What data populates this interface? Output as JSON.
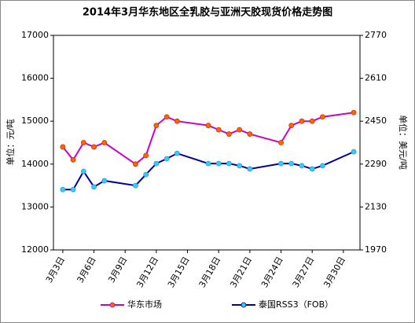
{
  "chart_data": {
    "type": "line",
    "title": "2014年3月华东地区全乳胶与亚洲天胶现货价格走势图",
    "y_label": "单位：元/吨",
    "y2_label": "单位：美元/吨",
    "x": [
      3,
      4,
      5,
      6,
      7,
      10,
      11,
      12,
      13,
      14,
      17,
      18,
      19,
      20,
      21,
      24,
      25,
      26,
      27,
      28,
      31
    ],
    "xlim": [
      2.1,
      31.6
    ],
    "xticks": [
      {
        "value": 3,
        "label": "3月3日"
      },
      {
        "value": 6,
        "label": "3月6日"
      },
      {
        "value": 9,
        "label": "3月9日"
      },
      {
        "value": 12,
        "label": "3月12日"
      },
      {
        "value": 15,
        "label": "3月15日"
      },
      {
        "value": 18,
        "label": "3月18日"
      },
      {
        "value": 21,
        "label": "3月21日"
      },
      {
        "value": 24,
        "label": "3月24日"
      },
      {
        "value": 27,
        "label": "3月27日"
      },
      {
        "value": 30,
        "label": "3月30日"
      }
    ],
    "ylim": [
      12000,
      17000
    ],
    "yticks": [
      12000,
      13000,
      14000,
      15000,
      16000,
      17000
    ],
    "y2lim": [
      1970,
      2770
    ],
    "y2ticks": [
      1970,
      2130,
      2290,
      2450,
      2610,
      2770
    ],
    "legend": "bottom",
    "series": [
      {
        "name": "华东市场",
        "color": "#cc00cc",
        "marker_color": "#ff6600",
        "values": [
          14400,
          14100,
          14500,
          14400,
          14500,
          14000,
          14200,
          14900,
          15100,
          15000,
          14900,
          14800,
          14700,
          14800,
          14700,
          14500,
          14900,
          15000,
          15000,
          15100,
          15200
        ]
      },
      {
        "name": "泰国RSS3（FOB）",
        "color": "#000099",
        "marker_color": "#33ccff",
        "axis": "y2",
        "values": [
          2195,
          2195,
          2263,
          2205,
          2228,
          2210,
          2251,
          2292,
          2310,
          2330,
          2292,
          2292,
          2292,
          2284,
          2272,
          2292,
          2292,
          2284,
          2272,
          2284,
          2336
        ]
      }
    ]
  }
}
